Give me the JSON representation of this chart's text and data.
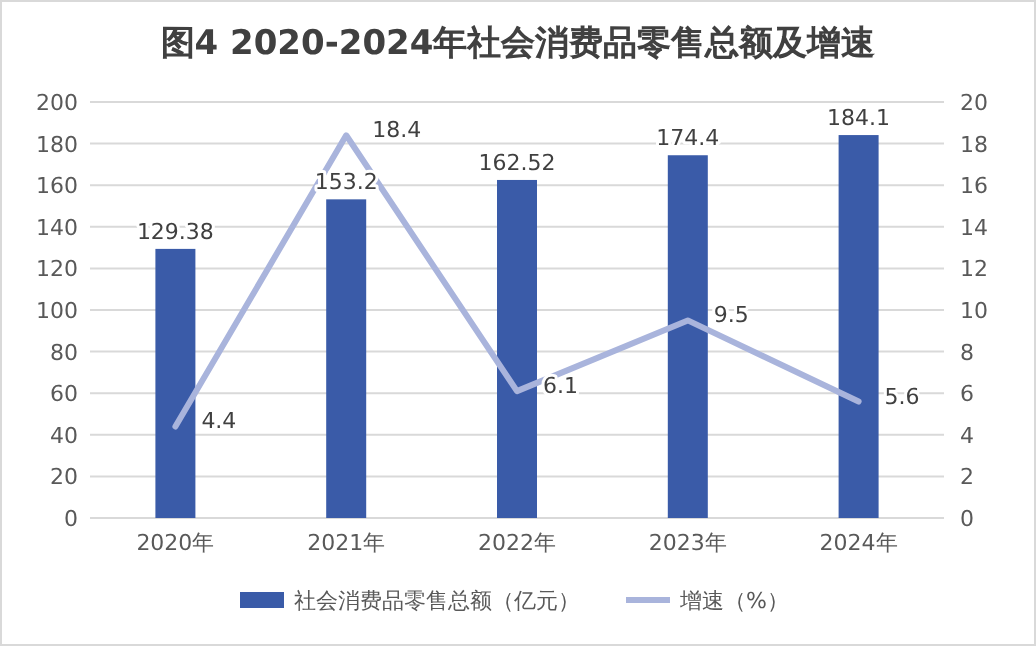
{
  "chart_data": {
    "type": "bar",
    "title": "图4 2020-2024年社会消费品零售总额及增速",
    "categories": [
      "2020年",
      "2021年",
      "2022年",
      "2023年",
      "2024年"
    ],
    "series": [
      {
        "name": "社会消费品零售总额（亿元）",
        "color": "#3a5ba8",
        "values": [
          129.38,
          153.2,
          162.52,
          174.4,
          184.1
        ]
      },
      {
        "name": "增速（%）",
        "type": "line",
        "axis": "y2",
        "color": "#a9b4dc",
        "values": [
          4.4,
          18.4,
          6.1,
          9.5,
          5.6
        ]
      }
    ],
    "ylim": [
      0,
      200
    ],
    "yticks": [
      0,
      20,
      40,
      60,
      80,
      100,
      120,
      140,
      160,
      180,
      200
    ],
    "y2lim": [
      0,
      20
    ],
    "y2ticks": [
      0,
      2,
      4,
      6,
      8,
      10,
      12,
      14,
      16,
      18,
      20
    ],
    "grid": "y",
    "legend": "bottom",
    "data_labels": true,
    "marker": "none",
    "line_style": "solid"
  }
}
